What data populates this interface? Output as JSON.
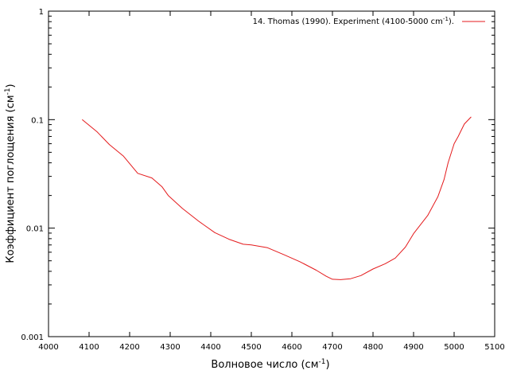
{
  "chart_data": {
    "type": "line",
    "xlabel": "Волновое число (см",
    "xlabel_sup": "-1",
    "xlabel_end": ")",
    "ylabel": "Коэффициент поглощения (см",
    "ylabel_sup": "-1",
    "ylabel_end": ")",
    "xlim": [
      4000,
      5100
    ],
    "ylim": [
      0.001,
      1
    ],
    "y_scale": "log",
    "x_ticks": [
      "4000",
      "4100",
      "4200",
      "4300",
      "4400",
      "4500",
      "4600",
      "4700",
      "4800",
      "4900",
      "5000",
      "5100"
    ],
    "x_tick_values": [
      4000,
      4100,
      4200,
      4300,
      4400,
      4500,
      4600,
      4700,
      4800,
      4900,
      5000,
      5100
    ],
    "y_ticks": [
      "0.001",
      "0.01",
      "0.1",
      "1"
    ],
    "y_tick_values": [
      0.001,
      0.01,
      0.1,
      1
    ],
    "grid": false,
    "legend_position": "top-right",
    "series": [
      {
        "name": "14. Thomas (1990). Experiment (4100-5000 cm",
        "name_sup": "-1",
        "name_end": ").",
        "color": "#e41a1c",
        "x": [
          4083,
          4120,
          4150,
          4185,
          4220,
          4255,
          4280,
          4295,
          4330,
          4370,
          4410,
          4445,
          4480,
          4500,
          4540,
          4580,
          4620,
          4660,
          4685,
          4700,
          4720,
          4745,
          4770,
          4800,
          4830,
          4855,
          4880,
          4900,
          4935,
          4960,
          4975,
          4985,
          5000,
          5010,
          5025,
          5042
        ],
        "y": [
          0.1,
          0.077,
          0.059,
          0.046,
          0.032,
          0.029,
          0.024,
          0.02,
          0.0152,
          0.0116,
          0.0091,
          0.0079,
          0.0071,
          0.007,
          0.0066,
          0.0057,
          0.0049,
          0.0041,
          0.0036,
          0.00338,
          0.00335,
          0.00342,
          0.00365,
          0.0042,
          0.0047,
          0.0053,
          0.0067,
          0.0089,
          0.0131,
          0.0195,
          0.028,
          0.04,
          0.06,
          0.07,
          0.091,
          0.106
        ]
      }
    ]
  }
}
